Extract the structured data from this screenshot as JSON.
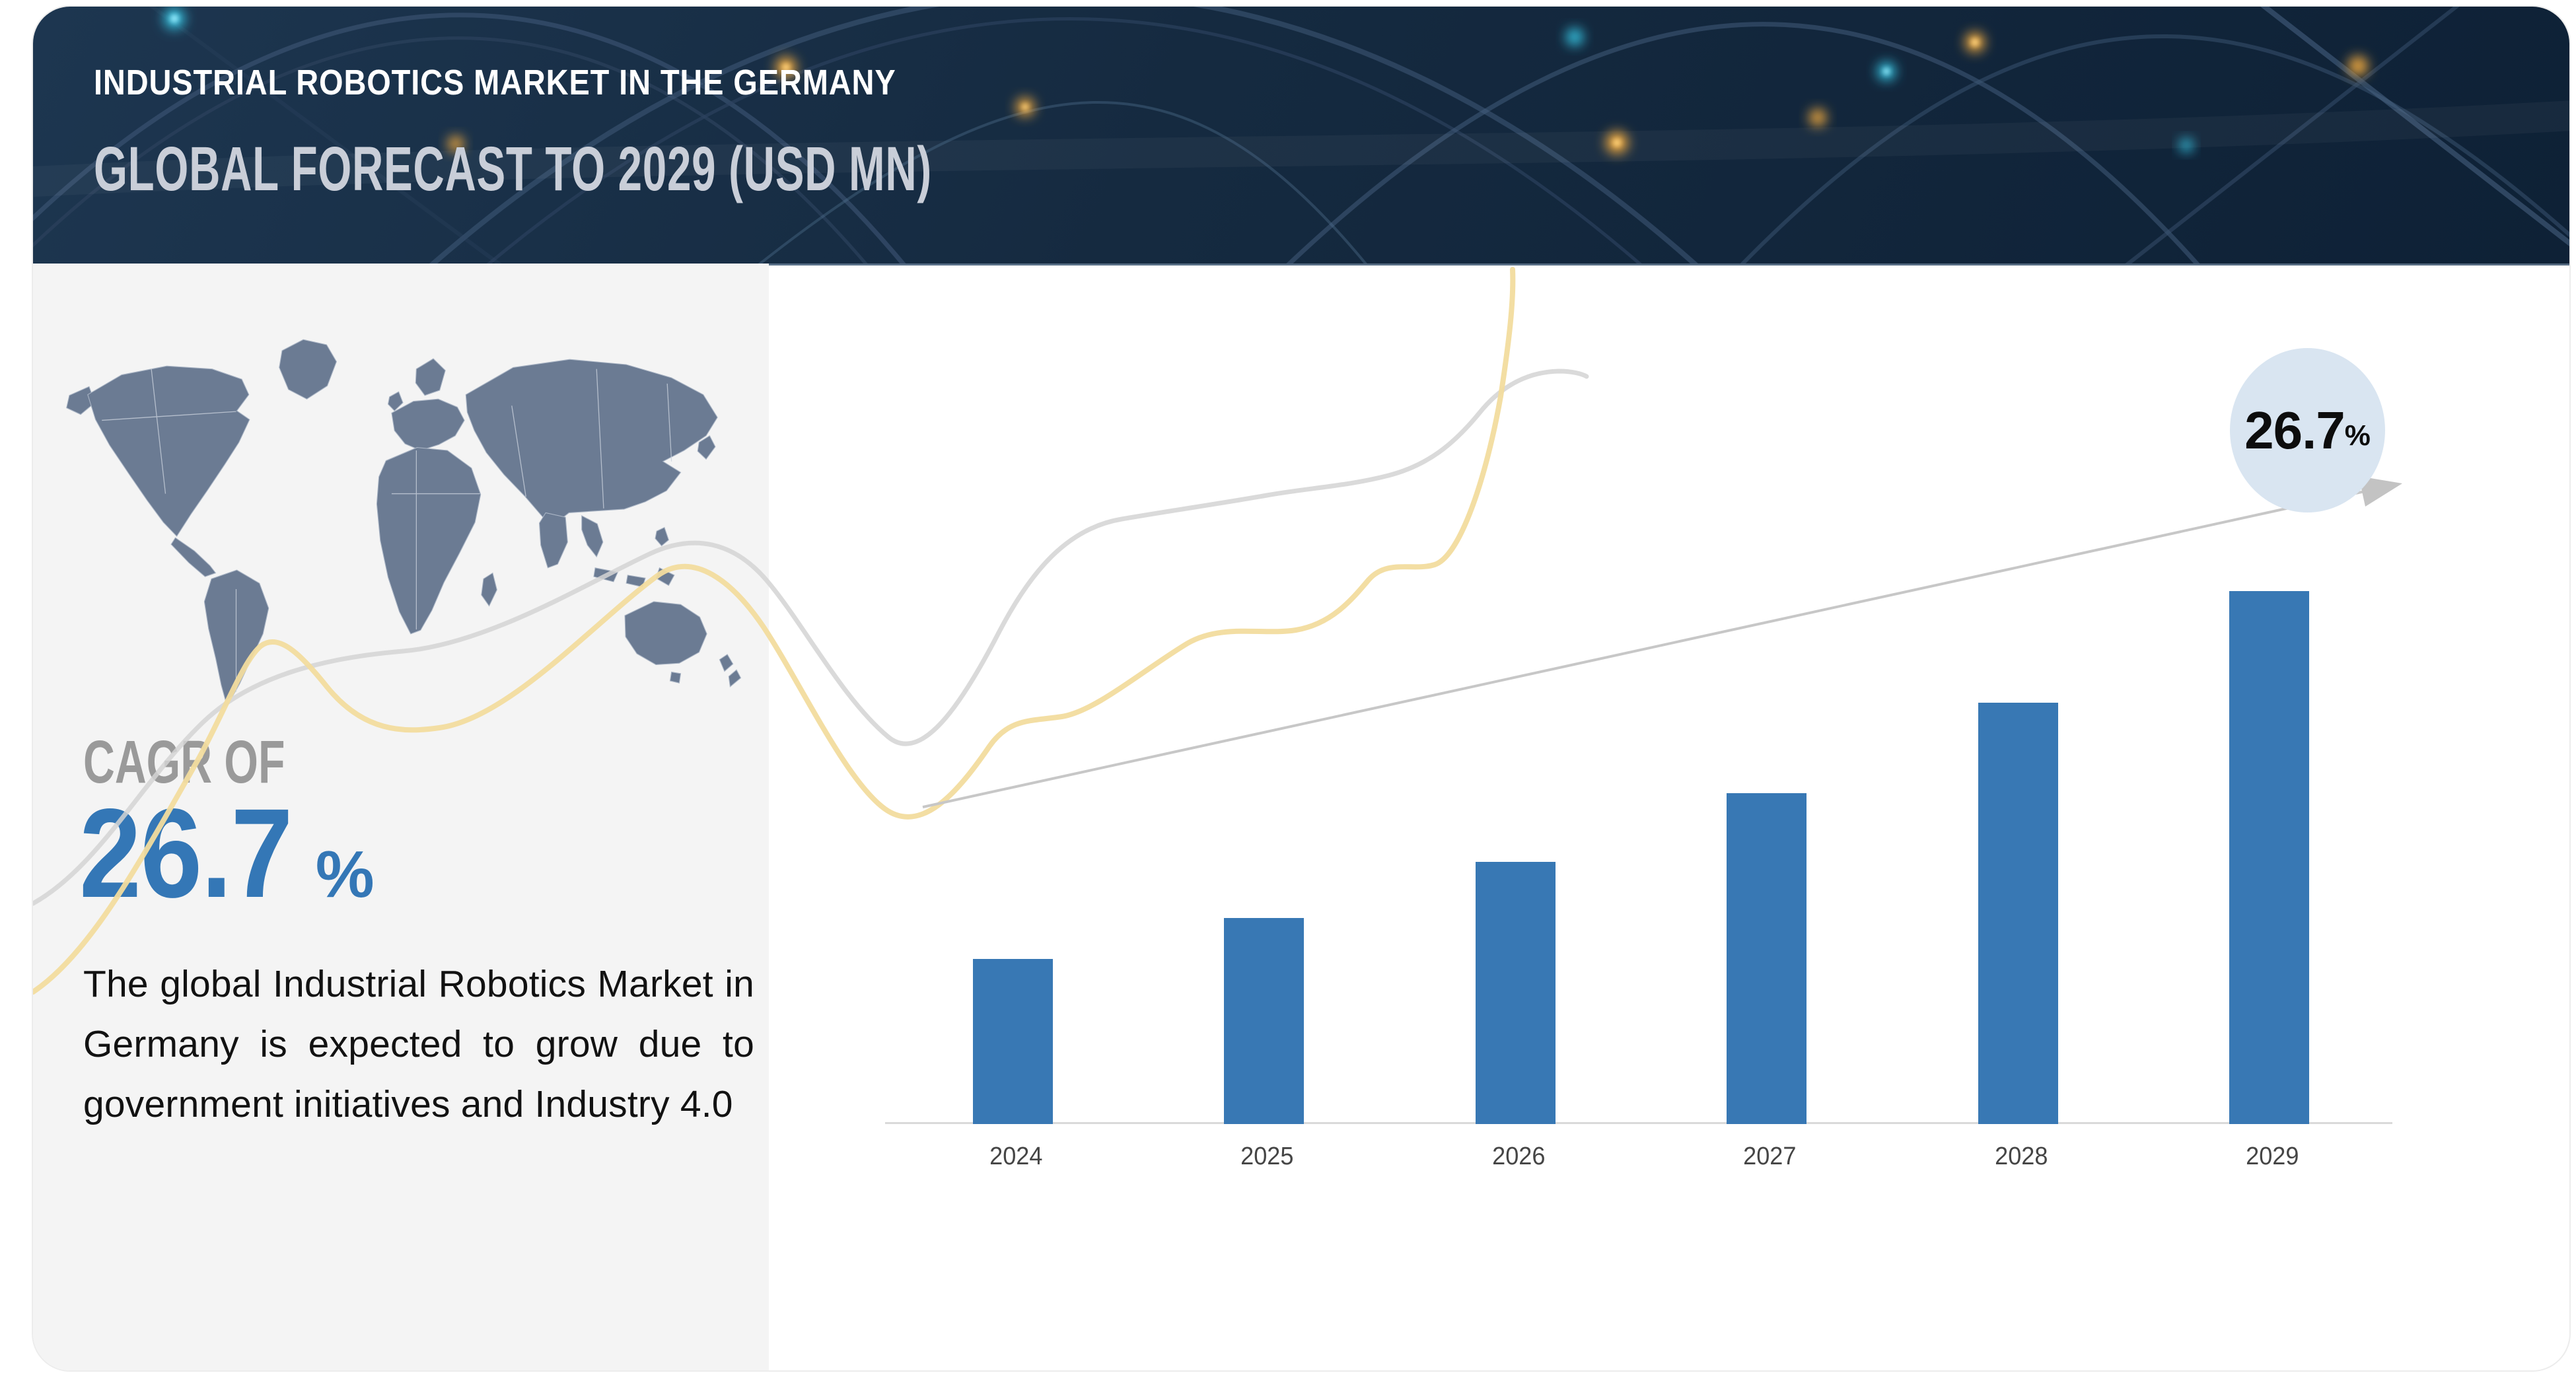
{
  "header": {
    "title": "INDUSTRIAL ROBOTICS MARKET IN THE GERMANY",
    "subtitle": "GLOBAL FORECAST TO 2029 (USD MN)"
  },
  "left_panel": {
    "cagr_label": "CAGR OF",
    "cagr_value": "26.7",
    "cagr_unit": "%",
    "description": "The global Industrial Robotics Market in Germany is expected to grow due to government initiatives and Industry 4.0"
  },
  "annotation_badge": {
    "value": "26.7",
    "unit": "%"
  },
  "icons": {
    "world_map": "world-map-silhouette",
    "growth_arrow": "up-right-trend-arrow",
    "flow_lines": "decorative-flowing-curves",
    "network_art": "glowing-fiber-arcs-background"
  },
  "colors": {
    "header_bg": "#152a40",
    "title": "#ffffff",
    "subtitle": "#c9ced8",
    "panel_bg": "#f4f4f4",
    "map_fill": "#6b7b93",
    "cagr_label": "#9a9a9a",
    "accent_blue": "#3477b6",
    "bar": "#3878b4",
    "axis": "#dadada",
    "year_label": "#454545",
    "badge_bg": "#d9e5f1",
    "arrow": "#c7c7c7",
    "curve_yellow": "#f2dc9e",
    "curve_gray": "#d3d3d3"
  },
  "chart_data": {
    "type": "bar",
    "categories": [
      "2024",
      "2025",
      "2026",
      "2027",
      "2028",
      "2029"
    ],
    "values": [
      250,
      312,
      397,
      501,
      638,
      807
    ],
    "value_scale": "relative bar heights in px (no value axis or data labels shown)",
    "cagr_annotation": "26.7%",
    "title": "",
    "xlabel": "",
    "ylabel": "",
    "y_axis_visible": false,
    "gridlines": false,
    "value_labels_visible": false,
    "bar_color": "#3878b4",
    "legend": "none"
  }
}
